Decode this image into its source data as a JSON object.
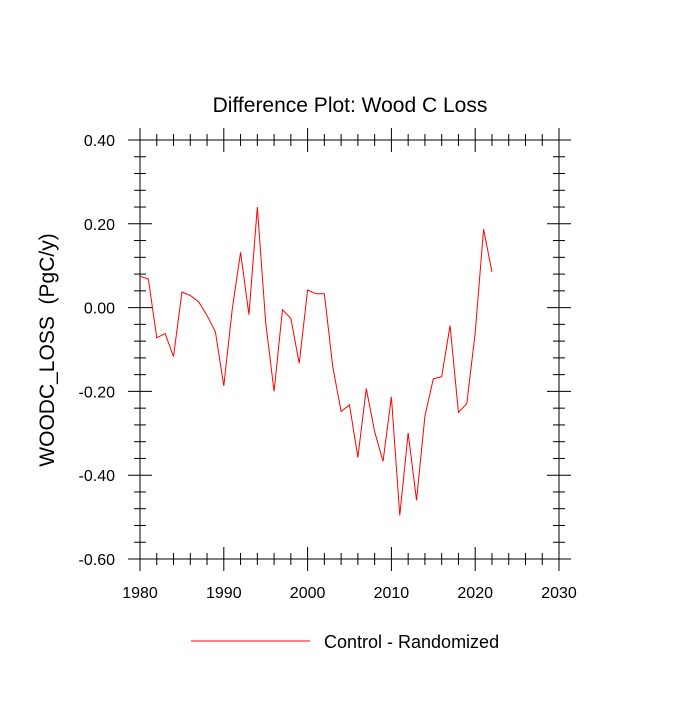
{
  "chart_data": {
    "type": "line",
    "title": "Difference Plot: Wood C Loss",
    "xlabel": "",
    "ylabel": "WOODC_LOSS  (PgC/y)",
    "xlim": [
      1980,
      2030
    ],
    "ylim": [
      -0.6,
      0.4
    ],
    "xticks": [
      1980,
      1990,
      2000,
      2010,
      2020,
      2030
    ],
    "xtick_labels": [
      "1980",
      "1990",
      "2000",
      "2010",
      "2020",
      "2030"
    ],
    "yticks": [
      0.4,
      0.2,
      0.0,
      -0.2,
      -0.4,
      -0.6
    ],
    "ytick_labels": [
      "0.40",
      "0.20",
      "0.00",
      "-0.20",
      "-0.40",
      "-0.60"
    ],
    "grid": false,
    "legend_position": "bottom",
    "series": [
      {
        "name": "Control - Randomized",
        "color": "#ff0000",
        "x": [
          1980,
          1981,
          1982,
          1983,
          1984,
          1985,
          1986,
          1987,
          1988,
          1989,
          1990,
          1991,
          1992,
          1993,
          1994,
          1995,
          1996,
          1997,
          1998,
          1999,
          2000,
          2001,
          2002,
          2003,
          2004,
          2005,
          2006,
          2007,
          2008,
          2009,
          2010,
          2011,
          2012,
          2013,
          2014,
          2015,
          2016,
          2017,
          2018,
          2019,
          2020,
          2021,
          2022
        ],
        "values": [
          0.075,
          0.068,
          -0.072,
          -0.062,
          -0.117,
          0.037,
          0.029,
          0.014,
          -0.019,
          -0.058,
          -0.187,
          -0.005,
          0.132,
          -0.017,
          0.24,
          -0.036,
          -0.2,
          -0.005,
          -0.026,
          -0.133,
          0.042,
          0.033,
          0.033,
          -0.141,
          -0.248,
          -0.232,
          -0.358,
          -0.193,
          -0.296,
          -0.367,
          -0.213,
          -0.496,
          -0.299,
          -0.46,
          -0.259,
          -0.17,
          -0.165,
          -0.043,
          -0.25,
          -0.229,
          -0.06,
          0.187,
          0.085
        ]
      }
    ]
  }
}
